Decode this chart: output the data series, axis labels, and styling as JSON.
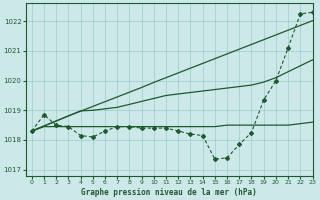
{
  "title": "Graphe pression niveau de la mer (hPa)",
  "bg_color": "#cce8e8",
  "grid_color": "#99cccc",
  "line_color": "#1a5c2a",
  "xlim": [
    -0.5,
    23
  ],
  "ylim": [
    1016.8,
    1022.6
  ],
  "yticks": [
    1017,
    1018,
    1019,
    1020,
    1021,
    1022
  ],
  "xticks": [
    0,
    1,
    2,
    3,
    4,
    5,
    6,
    7,
    8,
    9,
    10,
    11,
    12,
    13,
    14,
    15,
    16,
    17,
    18,
    19,
    20,
    21,
    22,
    23
  ],
  "series_main": [
    1018.3,
    1018.85,
    1018.5,
    1018.45,
    1018.15,
    1018.1,
    1018.3,
    1018.45,
    1018.45,
    1018.4,
    1018.4,
    1018.4,
    1018.3,
    1018.2,
    1018.15,
    1017.35,
    1017.4,
    1017.85,
    1018.25,
    1019.35,
    1020.0,
    1021.1,
    1022.25,
    1022.3
  ],
  "series_flat": [
    1018.3,
    1018.45,
    1018.45,
    1018.45,
    1018.45,
    1018.45,
    1018.45,
    1018.45,
    1018.45,
    1018.45,
    1018.45,
    1018.45,
    1018.45,
    1018.45,
    1018.45,
    1018.45,
    1018.5,
    1018.5,
    1018.5,
    1018.5,
    1018.5,
    1018.5,
    1018.55,
    1018.6
  ],
  "series_diag": [
    1018.3,
    1018.47,
    1018.64,
    1018.81,
    1018.98,
    1019.0,
    1019.05,
    1019.1,
    1019.2,
    1019.3,
    1019.4,
    1019.5,
    1019.55,
    1019.6,
    1019.65,
    1019.7,
    1019.75,
    1019.8,
    1019.85,
    1019.95,
    1020.1,
    1020.3,
    1020.5,
    1020.7
  ],
  "series_linear_top": [
    1018.3,
    1018.47,
    1018.64,
    1018.81,
    1018.97,
    1019.13,
    1019.29,
    1019.45,
    1019.61,
    1019.77,
    1019.94,
    1020.1,
    1020.26,
    1020.42,
    1020.58,
    1020.74,
    1020.9,
    1021.06,
    1021.22,
    1021.38,
    1021.54,
    1021.7,
    1021.86,
    1022.02
  ]
}
